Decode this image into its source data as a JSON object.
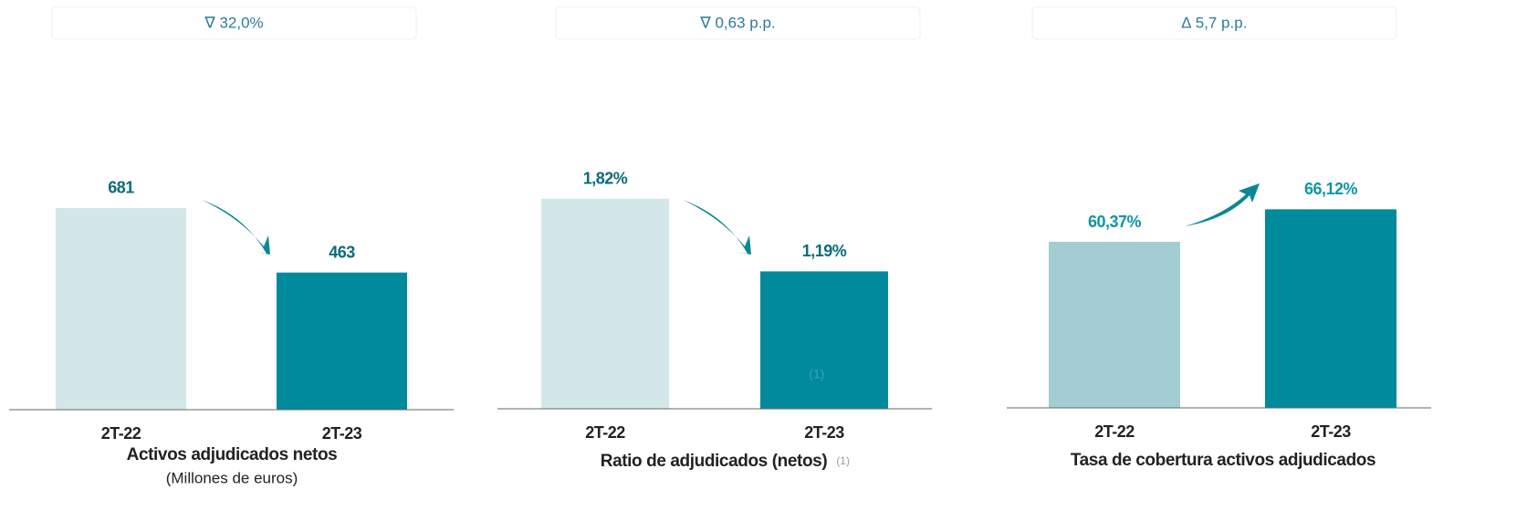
{
  "chart_data": [
    {
      "type": "bar",
      "title": "Activos adjudicados netos",
      "subtitle": "(Millones de euros)",
      "annotation": "∇ 32,0%",
      "categories": [
        "2T-22",
        "2T-23"
      ],
      "values": [
        681,
        463
      ],
      "value_labels": [
        "681",
        "463"
      ],
      "colors": [
        "#d3e7ea",
        "#008a9c"
      ],
      "label_color": "#0b6b78",
      "ylim": [
        0,
        1075
      ]
    },
    {
      "type": "bar",
      "title": "Ratio de adjudicados (netos)",
      "title_note": "(1)",
      "bar_note": "(1)",
      "annotation": "∇ 0,63 p.p.",
      "categories": [
        "2T-22",
        "2T-23"
      ],
      "values": [
        1.82,
        1.19
      ],
      "value_labels": [
        "1,82%",
        "1,19%"
      ],
      "colors": [
        "#d3e7ea",
        "#008a9c"
      ],
      "label_color": "#0b6b78",
      "ylim": [
        0,
        2.75
      ]
    },
    {
      "type": "bar",
      "title": "Tasa de cobertura activos adjudicados",
      "annotation": "∆ 5,7 p.p.",
      "categories": [
        "2T-22",
        "2T-23"
      ],
      "values": [
        60.37,
        66.12
      ],
      "value_labels": [
        "60,37%",
        "66,12%"
      ],
      "colors": [
        "#a3cdd3",
        "#008a9c"
      ],
      "label_color": "#0e96a8",
      "ylim": [
        31,
        87
      ]
    }
  ]
}
